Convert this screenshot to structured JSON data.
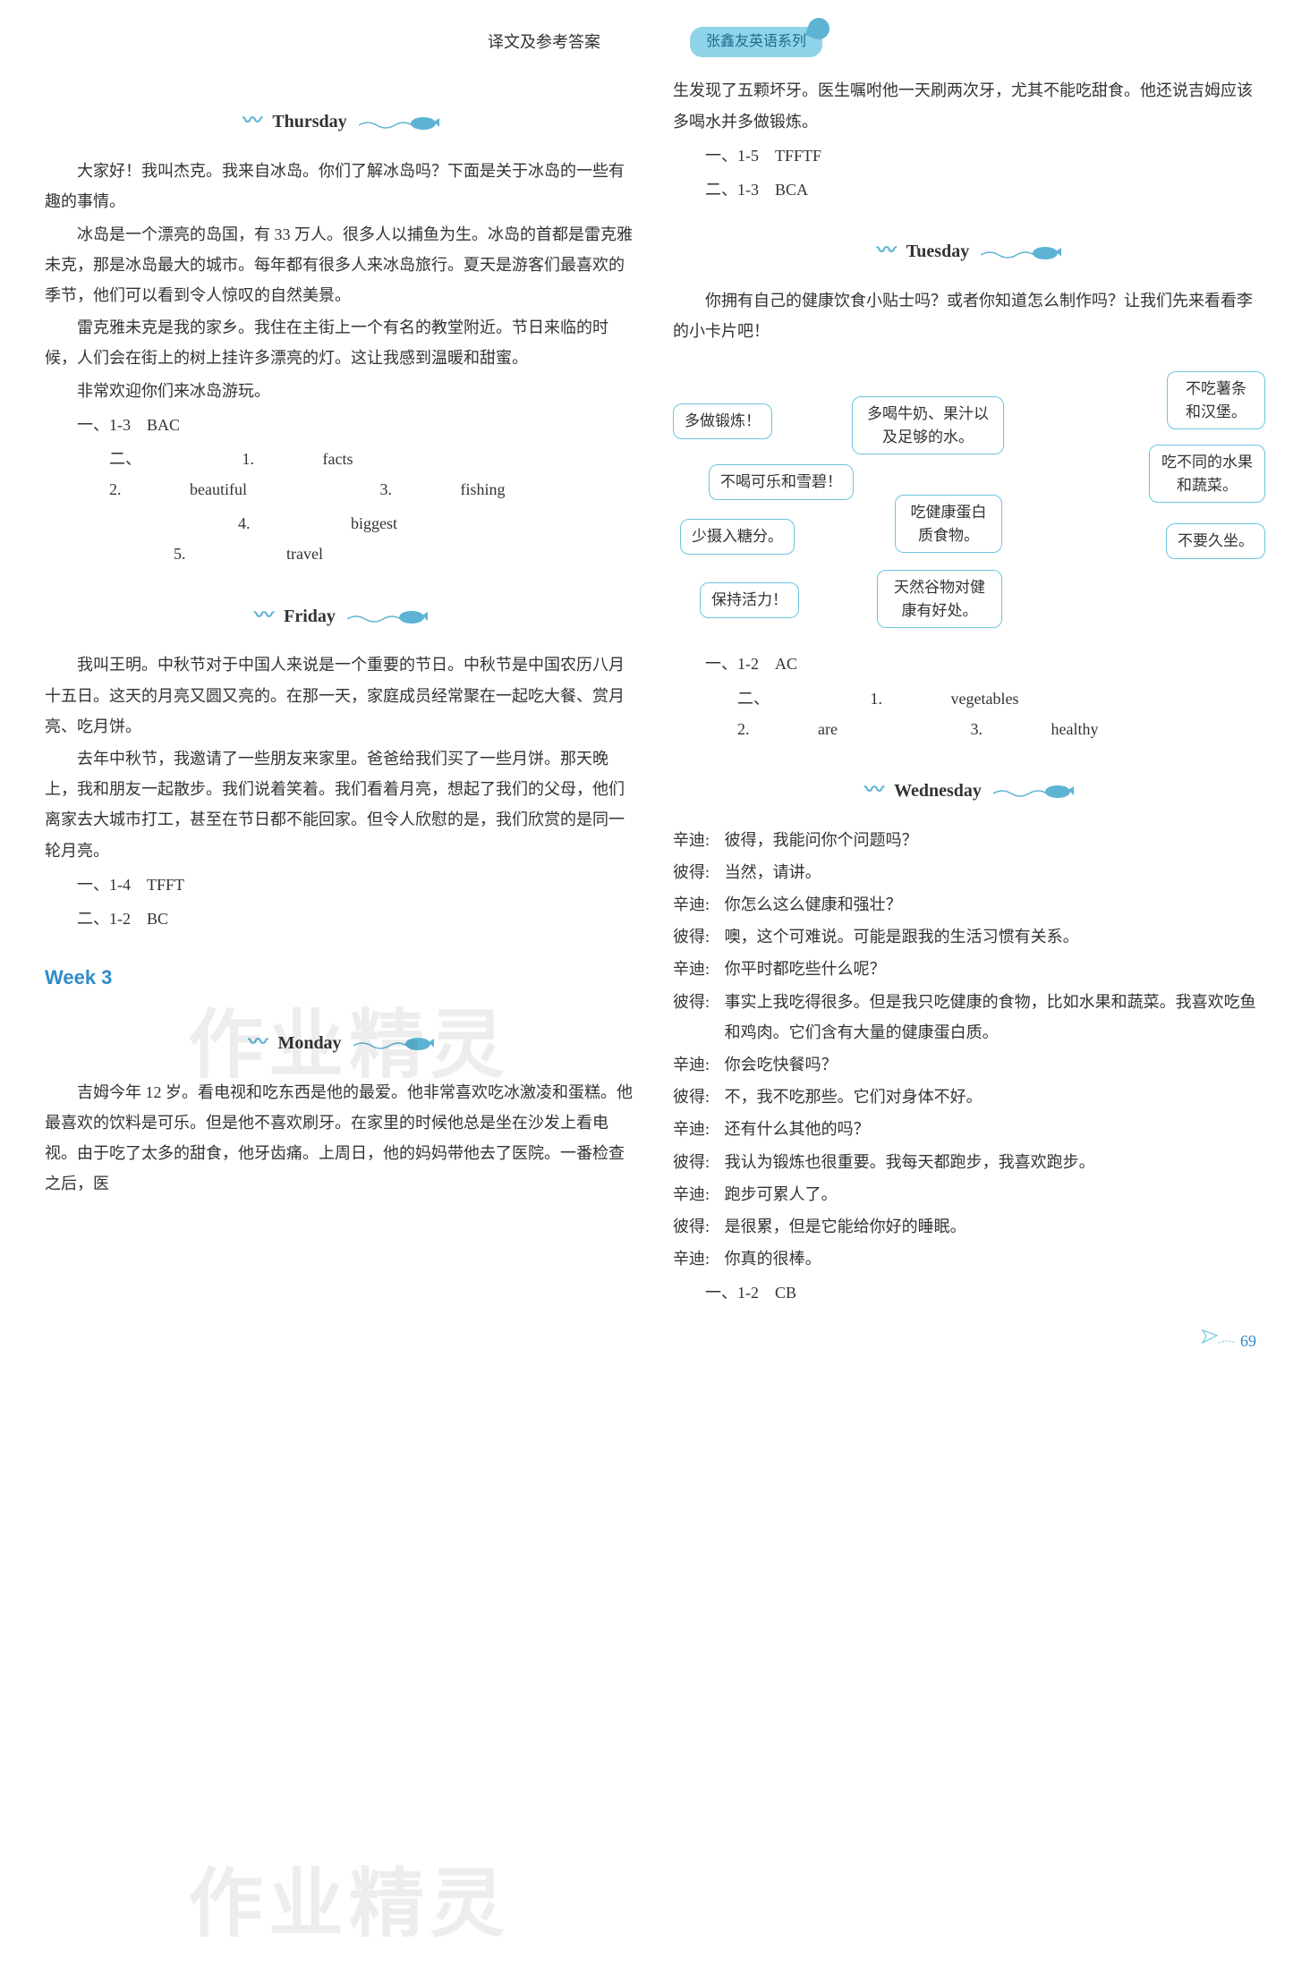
{
  "header": {
    "center_title": "译文及参考答案",
    "badge": "张鑫友英语系列"
  },
  "left": {
    "thursday": {
      "heading": "Thursday",
      "paras": [
        "大家好！我叫杰克。我来自冰岛。你们了解冰岛吗？下面是关于冰岛的一些有趣的事情。",
        "冰岛是一个漂亮的岛国，有 33 万人。很多人以捕鱼为生。冰岛的首都是雷克雅未克，那是冰岛最大的城市。每年都有很多人来冰岛旅行。夏天是游客们最喜欢的季节，他们可以看到令人惊叹的自然美景。",
        "雷克雅未克是我的家乡。我住在主街上一个有名的教堂附近。节日来临的时候，人们会在街上的树上挂许多漂亮的灯。这让我感到温暖和甜蜜。",
        "非常欢迎你们来冰岛游玩。"
      ],
      "ans1_label": "一、1-3",
      "ans1_value": "BAC",
      "ans2_label": "二、",
      "ans2_items": [
        {
          "n": "1.",
          "v": "facts"
        },
        {
          "n": "2.",
          "v": "beautiful"
        },
        {
          "n": "3.",
          "v": "fishing"
        },
        {
          "n": "4.",
          "v": "biggest"
        },
        {
          "n": "5.",
          "v": "travel"
        }
      ]
    },
    "friday": {
      "heading": "Friday",
      "paras": [
        "我叫王明。中秋节对于中国人来说是一个重要的节日。中秋节是中国农历八月十五日。这天的月亮又圆又亮的。在那一天，家庭成员经常聚在一起吃大餐、赏月亮、吃月饼。",
        "去年中秋节，我邀请了一些朋友来家里。爸爸给我们买了一些月饼。那天晚上，我和朋友一起散步。我们说着笑着。我们看着月亮，想起了我们的父母，他们离家去大城市打工，甚至在节日都不能回家。但令人欣慰的是，我们欣赏的是同一轮月亮。"
      ],
      "ans1_label": "一、1-4",
      "ans1_value": "TFFT",
      "ans2_label": "二、1-2",
      "ans2_value": "BC"
    },
    "week3": {
      "title": "Week 3",
      "monday_heading": "Monday",
      "monday_para": "吉姆今年 12 岁。看电视和吃东西是他的最爱。他非常喜欢吃冰激凌和蛋糕。他最喜欢的饮料是可乐。但是他不喜欢刷牙。在家里的时候他总是坐在沙发上看电视。由于吃了太多的甜食，他牙齿痛。上周日，他的妈妈带他去了医院。一番检查之后，医"
    }
  },
  "right": {
    "monday_cont": {
      "para": "生发现了五颗坏牙。医生嘱咐他一天刷两次牙，尤其不能吃甜食。他还说吉姆应该多喝水并多做锻炼。",
      "ans1_label": "一、1-5",
      "ans1_value": "TFFTF",
      "ans2_label": "二、1-3",
      "ans2_value": "BCA"
    },
    "tuesday": {
      "heading": "Tuesday",
      "intro": "你拥有自己的健康饮食小贴士吗？或者你知道怎么制作吗？让我们先来看看李的小卡片吧！",
      "bubbles": {
        "b1": "多做锻炼！",
        "b2": "不吃薯条和汉堡。",
        "b3": "多喝牛奶、果汁以及足够的水。",
        "b4": "不喝可乐和雪碧！",
        "b5": "吃不同的水果和蔬菜。",
        "b6": "少摄入糖分。",
        "b7": "吃健康蛋白质食物。",
        "b8": "不要久坐。",
        "b9": "保持活力！",
        "b10": "天然谷物对健康有好处。"
      },
      "ans1_label": "一、1-2",
      "ans1_value": "AC",
      "ans2_label": "二、",
      "ans2_items": [
        {
          "n": "1.",
          "v": "vegetables"
        },
        {
          "n": "2.",
          "v": "are"
        },
        {
          "n": "3.",
          "v": "healthy"
        }
      ]
    },
    "wednesday": {
      "heading": "Wednesday",
      "dialogue": [
        {
          "s": "辛迪:",
          "l": "彼得，我能问你个问题吗？"
        },
        {
          "s": "彼得:",
          "l": "当然，请讲。"
        },
        {
          "s": "辛迪:",
          "l": "你怎么这么健康和强壮？"
        },
        {
          "s": "彼得:",
          "l": "噢，这个可难说。可能是跟我的生活习惯有关系。"
        },
        {
          "s": "辛迪:",
          "l": "你平时都吃些什么呢？"
        },
        {
          "s": "彼得:",
          "l": "事实上我吃得很多。但是我只吃健康的食物，比如水果和蔬菜。我喜欢吃鱼和鸡肉。它们含有大量的健康蛋白质。"
        },
        {
          "s": "辛迪:",
          "l": "你会吃快餐吗？"
        },
        {
          "s": "彼得:",
          "l": "不，我不吃那些。它们对身体不好。"
        },
        {
          "s": "辛迪:",
          "l": "还有什么其他的吗？"
        },
        {
          "s": "彼得:",
          "l": "我认为锻炼也很重要。我每天都跑步，我喜欢跑步。"
        },
        {
          "s": "辛迪:",
          "l": "跑步可累人了。"
        },
        {
          "s": "彼得:",
          "l": "是很累，但是它能给你好的睡眠。"
        },
        {
          "s": "辛迪:",
          "l": "你真的很棒。"
        }
      ],
      "ans1_label": "一、1-2",
      "ans1_value": "CB"
    }
  },
  "page_number": "69",
  "colors": {
    "accent": "#5db3d4",
    "blue_text": "#2f8bc9",
    "bubble_border": "#6cc5e0"
  }
}
